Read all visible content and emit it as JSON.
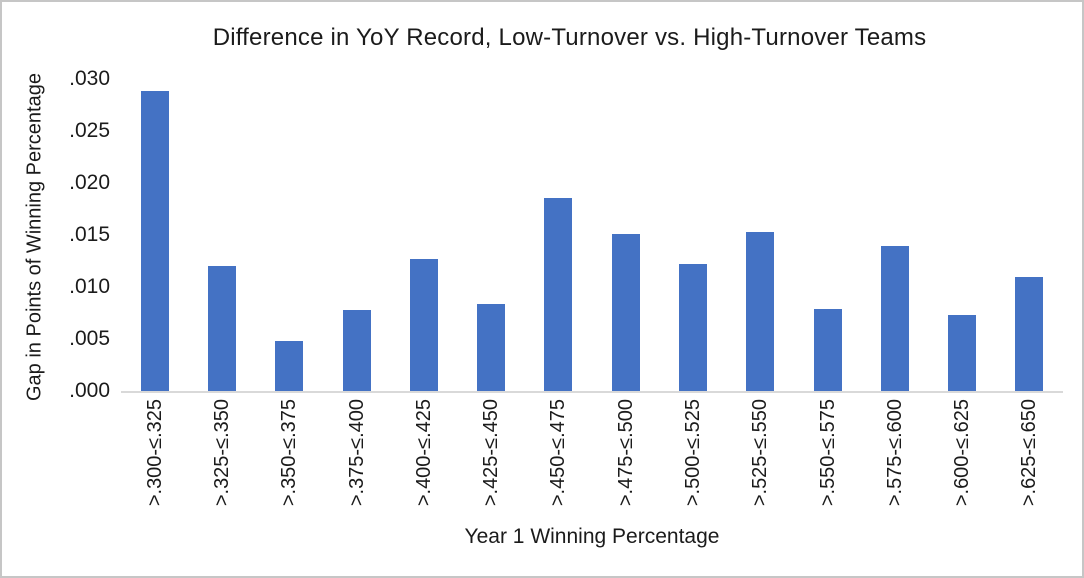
{
  "chart": {
    "title": "Difference in YoY Record, Low-Turnover vs. High-Turnover Teams",
    "y_axis": {
      "title": "Gap in Points of Winning Percentage",
      "tick_labels": [
        ".030",
        ".025",
        ".020",
        ".015",
        ".010",
        ".005",
        ".000"
      ]
    },
    "x_axis": {
      "title": "Year 1 Winning Percentage"
    },
    "colors": {
      "bar_fill": "#4472C4",
      "axis_line": "#d9d9d9",
      "text": "#1b1b1b",
      "canvas_border": "#c6c6c6",
      "background": "#ffffff"
    }
  },
  "chart_data": {
    "type": "bar",
    "title": "Difference in YoY Record, Low-Turnover vs. High-Turnover Teams",
    "xlabel": "Year 1 Winning Percentage",
    "ylabel": "Gap in Points of Winning Percentage",
    "ylim": [
      0,
      0.03
    ],
    "ytick_step": 0.005,
    "ytick_labels": [
      ".030",
      ".025",
      ".020",
      ".015",
      ".010",
      ".005",
      ".000"
    ],
    "grid": false,
    "legend": false,
    "bar_color": "#4472C4",
    "categories": [
      ">.300-≤.325",
      ">.325-≤.350",
      ">.350-≤.375",
      ">.375-≤.400",
      ">.400-≤.425",
      ">.425-≤.450",
      ">.450-≤.475",
      ">.475-≤.500",
      ">.500-≤.525",
      ">.525-≤.550",
      ">.550-≤.575",
      ">.575-≤.600",
      ">.600-≤.625",
      ">.625-≤.650"
    ],
    "values": [
      0.0288,
      0.012,
      0.0048,
      0.0078,
      0.0127,
      0.0084,
      0.0186,
      0.0151,
      0.0122,
      0.0153,
      0.0079,
      0.0139,
      0.0073,
      0.011
    ]
  }
}
